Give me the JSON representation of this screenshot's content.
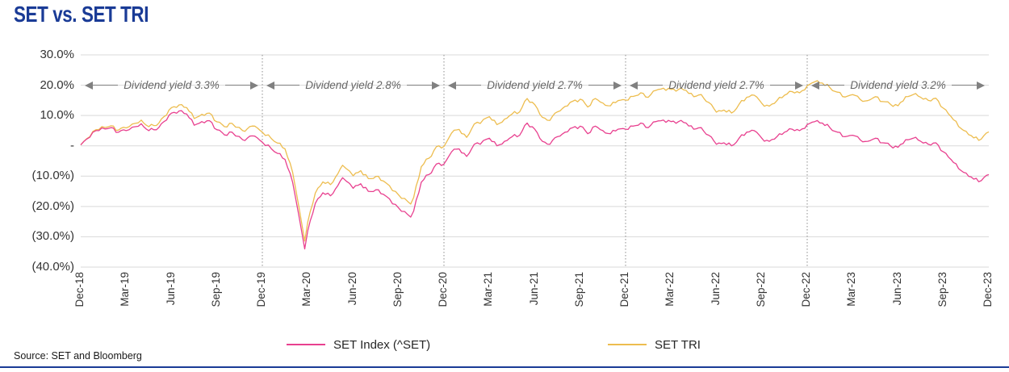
{
  "title": "SET vs. SET TRI",
  "source": "Source: SET and Bloomberg",
  "colors": {
    "title_navy": "#1a3b96",
    "set_index_pink": "#e8408f",
    "set_tri_gold": "#edbd4f",
    "gridline": "#d9d9d9",
    "separator": "#8c8c8c",
    "annotation_gray": "#808080"
  },
  "legend": [
    {
      "label": "SET Index (^SET)",
      "color": "#e8408f"
    },
    {
      "label": "SET TRI",
      "color": "#edbd4f"
    }
  ],
  "chart_data": {
    "type": "line",
    "title": "SET vs. SET TRI",
    "x_unit": "months since Dec-2018",
    "y_unit": "cumulative return %",
    "ylim": [
      -40,
      30
    ],
    "grid": "horizontal",
    "x_tick_labels": [
      "Dec-18",
      "Mar-19",
      "Jun-19",
      "Sep-19",
      "Dec-19",
      "Mar-20",
      "Jun-20",
      "Sep-20",
      "Dec-20",
      "Mar-21",
      "Jun-21",
      "Sep-21",
      "Dec-21",
      "Mar-22",
      "Jun-22",
      "Sep-22",
      "Dec-22",
      "Mar-23",
      "Jun-23",
      "Sep-23",
      "Dec-23"
    ],
    "y_ticks": [
      {
        "v": 30,
        "label": "30.0%"
      },
      {
        "v": 20,
        "label": "20.0%"
      },
      {
        "v": 10,
        "label": "10.0%"
      },
      {
        "v": 0,
        "label": "-"
      },
      {
        "v": -10,
        "label": "(10.0%)"
      },
      {
        "v": -20,
        "label": "(20.0%)"
      },
      {
        "v": -30,
        "label": "(30.0%)"
      },
      {
        "v": -40,
        "label": "(40.0%)"
      }
    ],
    "separator_months": [
      12,
      24,
      36,
      48
    ],
    "annotations": [
      {
        "label": "Dividend yield 3.3%",
        "from": "Dec-18",
        "to": "Dec-19",
        "from_month": 0,
        "to_month": 12,
        "at_percent": 20
      },
      {
        "label": "Dividend yield 2.8%",
        "from": "Dec-19",
        "to": "Dec-20",
        "from_month": 12,
        "to_month": 24,
        "at_percent": 20
      },
      {
        "label": "Dividend yield 2.7%",
        "from": "Dec-20",
        "to": "Dec-21",
        "from_month": 24,
        "to_month": 36,
        "at_percent": 20
      },
      {
        "label": "Dividend yield 2.7%",
        "from": "Dec-21",
        "to": "Dec-22",
        "from_month": 36,
        "to_month": 48,
        "at_percent": 20
      },
      {
        "label": "Dividend yield 3.2%",
        "from": "Dec-22",
        "to": "Dec-23",
        "from_month": 48,
        "to_month": 60,
        "at_percent": 20
      }
    ],
    "series": [
      {
        "name": "SET TRI",
        "color": "#edbd4f",
        "points": [
          [
            0,
            0.3
          ],
          [
            1,
            5.3
          ],
          [
            2,
            6.6
          ],
          [
            2.5,
            5.2
          ],
          [
            3,
            5.9
          ],
          [
            4,
            8.5
          ],
          [
            4.5,
            6.3
          ],
          [
            5,
            6.7
          ],
          [
            5.5,
            9.6
          ],
          [
            6,
            12.6
          ],
          [
            6.5,
            13.5
          ],
          [
            7,
            12.6
          ],
          [
            7.5,
            9
          ],
          [
            8,
            10.4
          ],
          [
            8.5,
            10.8
          ],
          [
            9,
            7.9
          ],
          [
            9.5,
            6.3
          ],
          [
            10,
            7.4
          ],
          [
            10.7,
            5
          ],
          [
            11,
            5.6
          ],
          [
            11.5,
            6.5
          ],
          [
            12,
            4.5
          ],
          [
            13,
            0.9
          ],
          [
            13.5,
            -1
          ],
          [
            14,
            -8.7
          ],
          [
            14.8,
            -31.4
          ],
          [
            15,
            -25.1
          ],
          [
            15.5,
            -15.6
          ],
          [
            16,
            -11.9
          ],
          [
            16.5,
            -12.8
          ],
          [
            17,
            -9.1
          ],
          [
            17.3,
            -6.4
          ],
          [
            18,
            -9.9
          ],
          [
            18.5,
            -8.2
          ],
          [
            19,
            -10.8
          ],
          [
            19.5,
            -10.1
          ],
          [
            20,
            -11.6
          ],
          [
            21,
            -16.2
          ],
          [
            21.8,
            -19.2
          ],
          [
            22,
            -17
          ],
          [
            22.5,
            -6.9
          ],
          [
            23,
            -4.1
          ],
          [
            23.5,
            -0.3
          ],
          [
            24,
            -0.2
          ],
          [
            24.5,
            4.2
          ],
          [
            25,
            5.4
          ],
          [
            25.5,
            2.8
          ],
          [
            26,
            7.2
          ],
          [
            27,
            9.6
          ],
          [
            27.5,
            7
          ],
          [
            28,
            8.8
          ],
          [
            28.5,
            10.5
          ],
          [
            29,
            11.2
          ],
          [
            29.5,
            15.6
          ],
          [
            30,
            13.6
          ],
          [
            30.5,
            9.4
          ],
          [
            31,
            8.4
          ],
          [
            31.5,
            11.2
          ],
          [
            32,
            13
          ],
          [
            32.5,
            14.7
          ],
          [
            33,
            15.4
          ],
          [
            33.5,
            12.8
          ],
          [
            34,
            15.6
          ],
          [
            34.5,
            14.1
          ],
          [
            35,
            13.2
          ],
          [
            35.5,
            14.9
          ],
          [
            36,
            15.1
          ],
          [
            36.5,
            16.3
          ],
          [
            37,
            17.5
          ],
          [
            37.5,
            16
          ],
          [
            38,
            18.3
          ],
          [
            38.5,
            19
          ],
          [
            39,
            18.6
          ],
          [
            39.5,
            18.6
          ],
          [
            40,
            18.3
          ],
          [
            40.5,
            16.2
          ],
          [
            41,
            16.9
          ],
          [
            41.5,
            14.3
          ],
          [
            42,
            11.1
          ],
          [
            42.5,
            11.8
          ],
          [
            43,
            10.8
          ],
          [
            43.5,
            13.7
          ],
          [
            44,
            16
          ],
          [
            44.5,
            16.7
          ],
          [
            45,
            14
          ],
          [
            45.5,
            13.1
          ],
          [
            46,
            14.9
          ],
          [
            46.5,
            16.7
          ],
          [
            47,
            17.9
          ],
          [
            47.5,
            17.5
          ],
          [
            48,
            19.8
          ],
          [
            48.5,
            21.1
          ],
          [
            49,
            20.7
          ],
          [
            49.5,
            19.2
          ],
          [
            50,
            17.7
          ],
          [
            50.5,
            16.1
          ],
          [
            51,
            16.9
          ],
          [
            51.5,
            15.3
          ],
          [
            52,
            14.9
          ],
          [
            52.5,
            16.2
          ],
          [
            53,
            14.6
          ],
          [
            53.5,
            13.7
          ],
          [
            54,
            13.2
          ],
          [
            54.5,
            16.2
          ],
          [
            55,
            16.9
          ],
          [
            55.5,
            16
          ],
          [
            56,
            15
          ],
          [
            56.5,
            15.7
          ],
          [
            57,
            12.4
          ],
          [
            57.5,
            9.7
          ],
          [
            58,
            6.4
          ],
          [
            58.5,
            4.8
          ],
          [
            59,
            2.6
          ],
          [
            59.5,
            2.2
          ],
          [
            60,
            4.6
          ]
        ]
      },
      {
        "name": "SET Index (^SET)",
        "color": "#e8408f",
        "points": [
          [
            0,
            0.3
          ],
          [
            1,
            5
          ],
          [
            2,
            6
          ],
          [
            2.5,
            4.5
          ],
          [
            3,
            5
          ],
          [
            4,
            7.3
          ],
          [
            4.5,
            5
          ],
          [
            5,
            5.3
          ],
          [
            5.5,
            8
          ],
          [
            6,
            10.8
          ],
          [
            6.5,
            11.5
          ],
          [
            7,
            10.5
          ],
          [
            7.5,
            6.8
          ],
          [
            8,
            8
          ],
          [
            8.5,
            8.3
          ],
          [
            9,
            5.3
          ],
          [
            9.5,
            3.6
          ],
          [
            10,
            4.5
          ],
          [
            10.7,
            2
          ],
          [
            11,
            2.5
          ],
          [
            11.5,
            3.2
          ],
          [
            12,
            1.2
          ],
          [
            13,
            -2.5
          ],
          [
            13.5,
            -4.5
          ],
          [
            14,
            -12
          ],
          [
            14.8,
            -34
          ],
          [
            15,
            -28
          ],
          [
            15.5,
            -19
          ],
          [
            16,
            -15.5
          ],
          [
            16.5,
            -16.5
          ],
          [
            17,
            -13
          ],
          [
            17.3,
            -10.5
          ],
          [
            18,
            -14
          ],
          [
            18.5,
            -12.5
          ],
          [
            19,
            -15
          ],
          [
            19.5,
            -14.5
          ],
          [
            20,
            -16
          ],
          [
            21,
            -20.5
          ],
          [
            21.8,
            -23.5
          ],
          [
            22,
            -21.5
          ],
          [
            22.5,
            -12
          ],
          [
            23,
            -9.5
          ],
          [
            23.5,
            -6
          ],
          [
            24,
            -6
          ],
          [
            24.5,
            -2
          ],
          [
            25,
            -1
          ],
          [
            25.5,
            -3.5
          ],
          [
            26,
            0.5
          ],
          [
            27,
            2.5
          ],
          [
            27.5,
            0
          ],
          [
            28,
            1.5
          ],
          [
            28.5,
            3
          ],
          [
            29,
            3.5
          ],
          [
            29.5,
            7.5
          ],
          [
            30,
            5.5
          ],
          [
            30.5,
            1.5
          ],
          [
            31,
            0.5
          ],
          [
            31.5,
            3
          ],
          [
            32,
            4.5
          ],
          [
            32.5,
            6
          ],
          [
            33,
            6.5
          ],
          [
            33.5,
            4
          ],
          [
            34,
            6.5
          ],
          [
            34.5,
            5
          ],
          [
            35,
            4
          ],
          [
            35.5,
            5.5
          ],
          [
            36,
            5.5
          ],
          [
            36.5,
            6.5
          ],
          [
            37,
            7.5
          ],
          [
            37.5,
            6
          ],
          [
            38,
            8
          ],
          [
            38.5,
            8.5
          ],
          [
            39,
            8
          ],
          [
            39.5,
            8
          ],
          [
            40,
            7.5
          ],
          [
            40.5,
            5.5
          ],
          [
            41,
            6
          ],
          [
            41.5,
            3.5
          ],
          [
            42,
            0.5
          ],
          [
            42.5,
            1
          ],
          [
            43,
            0
          ],
          [
            43.5,
            2.5
          ],
          [
            44,
            4.5
          ],
          [
            44.5,
            5
          ],
          [
            45,
            2.5
          ],
          [
            45.5,
            1.5
          ],
          [
            46,
            3
          ],
          [
            46.5,
            4.5
          ],
          [
            47,
            5.5
          ],
          [
            47.5,
            5
          ],
          [
            48,
            7
          ],
          [
            48.5,
            8
          ],
          [
            49,
            7.5
          ],
          [
            49.5,
            6
          ],
          [
            50,
            4.5
          ],
          [
            50.5,
            3
          ],
          [
            51,
            3.5
          ],
          [
            51.5,
            2
          ],
          [
            52,
            1.5
          ],
          [
            52.5,
            2.5
          ],
          [
            53,
            1
          ],
          [
            53.5,
            0
          ],
          [
            54,
            -0.5
          ],
          [
            54.5,
            2
          ],
          [
            55,
            2.5
          ],
          [
            55.5,
            1.5
          ],
          [
            56,
            0.5
          ],
          [
            56.5,
            1
          ],
          [
            57,
            -2
          ],
          [
            57.5,
            -4.5
          ],
          [
            58,
            -7.5
          ],
          [
            58.5,
            -9
          ],
          [
            59,
            -11
          ],
          [
            59.5,
            -11.5
          ],
          [
            60,
            -9.5
          ]
        ]
      }
    ]
  }
}
